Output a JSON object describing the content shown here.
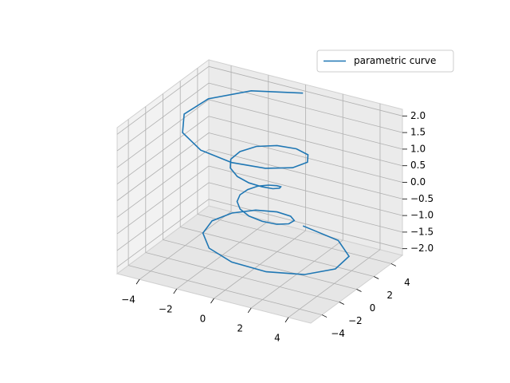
{
  "chart_data": {
    "type": "line3d",
    "series": [
      {
        "name": "parametric curve",
        "color": "#1f77b4",
        "x": [
          0,
          2.34,
          3.78,
          4.06,
          3.27,
          1.76,
          0,
          -1.51,
          -2.41,
          -2.56,
          -2.04,
          -1.09,
          0,
          0.92,
          1.46,
          1.56,
          1.25,
          0.67,
          0,
          -0.59,
          -0.96,
          -1.06,
          -0.89,
          -0.51,
          0,
          0.51,
          0.89,
          1.06,
          0.96,
          0.59,
          0,
          -0.67,
          -1.25,
          -1.56,
          -1.46,
          -0.92,
          0,
          1.09,
          2.04,
          2.56,
          2.41,
          1.51,
          0,
          -1.76,
          -3.27,
          -4.06,
          -3.78,
          -2.34,
          0
        ],
        "y": [
          5,
          4.04,
          2.18,
          0,
          -1.89,
          -3.04,
          -3.25,
          -2.61,
          -1.39,
          0,
          1.18,
          1.88,
          2,
          1.59,
          0.85,
          0,
          -0.72,
          -1.16,
          -1.25,
          -1.01,
          -0.56,
          0,
          0.52,
          0.87,
          1,
          0.87,
          0.52,
          0,
          -0.56,
          -1.01,
          -1.25,
          -1.16,
          -0.72,
          0,
          0.85,
          1.59,
          2,
          1.88,
          1.18,
          0,
          -1.39,
          -2.61,
          -3.25,
          -3.04,
          -1.89,
          0,
          2.18,
          4.04,
          5
        ],
        "z": [
          -2,
          -1.92,
          -1.83,
          -1.75,
          -1.67,
          -1.58,
          -1.5,
          -1.42,
          -1.33,
          -1.25,
          -1.17,
          -1.08,
          -1,
          -0.92,
          -0.83,
          -0.75,
          -0.67,
          -0.58,
          -0.5,
          -0.42,
          -0.33,
          -0.25,
          -0.17,
          -0.08,
          0,
          0.08,
          0.17,
          0.25,
          0.33,
          0.42,
          0.5,
          0.58,
          0.67,
          0.75,
          0.83,
          0.92,
          1,
          1.08,
          1.17,
          1.25,
          1.33,
          1.42,
          1.5,
          1.58,
          1.67,
          1.75,
          1.83,
          1.92,
          2
        ]
      }
    ],
    "xlim": [
      -5.2,
      5.2
    ],
    "ylim": [
      -5.3,
      5.3
    ],
    "zlim": [
      -2.2,
      2.2
    ],
    "xticks": [
      {
        "value": -4,
        "label": "−4"
      },
      {
        "value": -2,
        "label": "−2"
      },
      0,
      2,
      4
    ],
    "yticks": [
      {
        "value": -4,
        "label": "−4"
      },
      {
        "value": -2,
        "label": "−2"
      },
      0,
      2,
      4
    ],
    "zticks": [
      {
        "value": -2,
        "label": "−2.0"
      },
      {
        "value": -1.5,
        "label": "−1.5"
      },
      {
        "value": -1,
        "label": "−1.0"
      },
      {
        "value": -0.5,
        "label": "−0.5"
      },
      {
        "value": 0,
        "label": "0.0"
      },
      {
        "value": 0.5,
        "label": "0.5"
      },
      {
        "value": 1,
        "label": "1.0"
      },
      {
        "value": 1.5,
        "label": "1.5"
      },
      {
        "value": 2,
        "label": "2.0"
      }
    ],
    "grid": true,
    "legend": "upper right"
  }
}
